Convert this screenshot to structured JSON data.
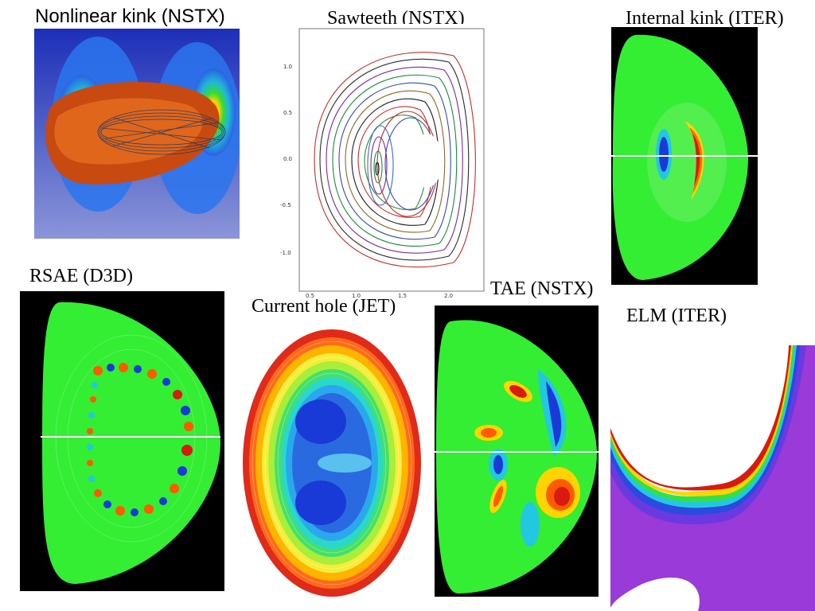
{
  "panels": {
    "nonlinear_kink": {
      "caption": "Nonlinear kink (NSTX)"
    },
    "sawteeth": {
      "caption": "Sawteeth (NSTX)",
      "y_ticks": [
        "1.0",
        "0.5",
        "0.0",
        "-0.5",
        "-1.0"
      ],
      "x_ticks": [
        "0.5",
        "1.0",
        "1.5",
        "2.0"
      ]
    },
    "internal_kink": {
      "caption": "Internal kink (ITER)"
    },
    "rsae": {
      "caption": "RSAE (D3D)"
    },
    "current_hole": {
      "caption": "Current hole (JET)"
    },
    "tae": {
      "caption": "TAE (NSTX)"
    },
    "elm": {
      "caption": "ELM (ITER)"
    }
  },
  "colors": {
    "background": "#ffffff",
    "plasma_green": "#33ee33",
    "frame_black": "#000000"
  }
}
